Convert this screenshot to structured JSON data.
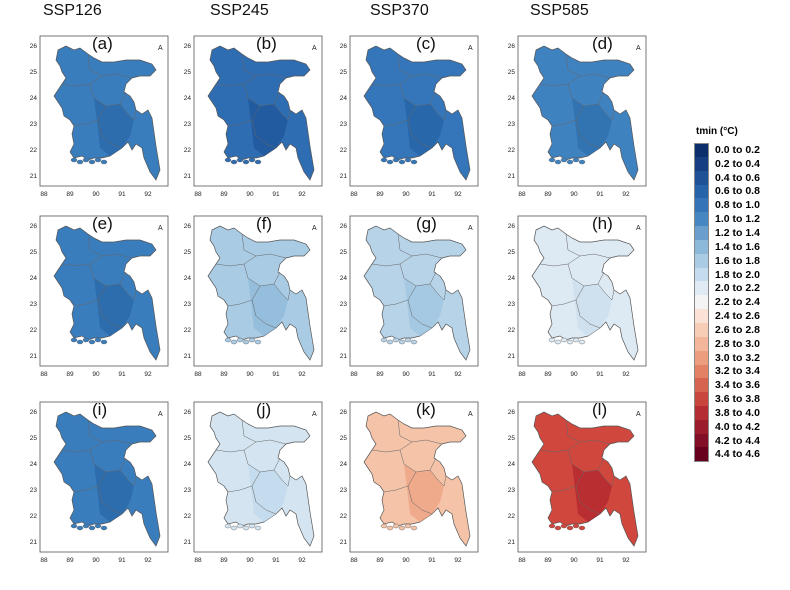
{
  "columns": [
    "SSP126",
    "SSP245",
    "SSP370",
    "SSP585"
  ],
  "axes": {
    "x_ticks": [
      "88",
      "89",
      "90",
      "91",
      "92"
    ],
    "y_ticks": [
      "26",
      "25",
      "24",
      "23",
      "22",
      "21"
    ]
  },
  "north_symbol": "A",
  "panels": [
    {
      "label": "(a)",
      "scenario": "SSP126",
      "row": 1,
      "fill": "#3a7dbd",
      "dark": "#2a68aa"
    },
    {
      "label": "(b)",
      "scenario": "SSP245",
      "row": 1,
      "fill": "#2f6db3",
      "dark": "#1f5699"
    },
    {
      "label": "(c)",
      "scenario": "SSP370",
      "row": 1,
      "fill": "#3476b9",
      "dark": "#2463a6"
    },
    {
      "label": "(d)",
      "scenario": "SSP585",
      "row": 1,
      "fill": "#3f82c0",
      "dark": "#2f6fae"
    },
    {
      "label": "(e)",
      "scenario": "SSP126",
      "row": 2,
      "fill": "#3a7dbd",
      "dark": "#2a68aa"
    },
    {
      "label": "(f)",
      "scenario": "SSP245",
      "row": 2,
      "fill": "#a9cbe4",
      "dark": "#8fbadb"
    },
    {
      "label": "(g)",
      "scenario": "SSP370",
      "row": 2,
      "fill": "#b7d3e8",
      "dark": "#a0c5e1"
    },
    {
      "label": "(h)",
      "scenario": "SSP585",
      "row": 2,
      "fill": "#dde9f3",
      "dark": "#c9dcec"
    },
    {
      "label": "(i)",
      "scenario": "SSP126",
      "row": 3,
      "fill": "#3a7dbd",
      "dark": "#2a68aa"
    },
    {
      "label": "(j)",
      "scenario": "SSP245",
      "row": 3,
      "fill": "#d4e5f1",
      "dark": "#bfd8eb"
    },
    {
      "label": "(k)",
      "scenario": "SSP370",
      "row": 3,
      "fill": "#f4c3a8",
      "dark": "#eea283"
    },
    {
      "label": "(l)",
      "scenario": "SSP585",
      "row": 3,
      "fill": "#d0473d",
      "dark": "#b2262d"
    }
  ],
  "legend": {
    "title": "tmin (°C)",
    "items": [
      {
        "label": "0.0 to 0.2",
        "color": "#0b2f6b"
      },
      {
        "label": "0.2 to 0.4",
        "color": "#153f80"
      },
      {
        "label": "0.4 to 0.6",
        "color": "#1e5296"
      },
      {
        "label": "0.6 to 0.8",
        "color": "#2763a8"
      },
      {
        "label": "0.8 to 1.0",
        "color": "#3574b6"
      },
      {
        "label": "1.0 to 1.2",
        "color": "#4787c1"
      },
      {
        "label": "1.2 to 1.4",
        "color": "#6a9fcd"
      },
      {
        "label": "1.4 to 1.6",
        "color": "#8cb8da"
      },
      {
        "label": "1.6 to 1.8",
        "color": "#aacbe4"
      },
      {
        "label": "1.8 to 2.0",
        "color": "#c5dcee"
      },
      {
        "label": "2.0 to 2.2",
        "color": "#dfeaf4"
      },
      {
        "label": "2.2 to 2.4",
        "color": "#f4f4f4"
      },
      {
        "label": "2.4 to 2.6",
        "color": "#fae3d6"
      },
      {
        "label": "2.6 to 2.8",
        "color": "#f7cdb6"
      },
      {
        "label": "2.8 to 3.0",
        "color": "#f3b69a"
      },
      {
        "label": "3.0 to 3.2",
        "color": "#ec9d7e"
      },
      {
        "label": "3.2 to 3.4",
        "color": "#e38165"
      },
      {
        "label": "3.4 to 3.6",
        "color": "#d6634f"
      },
      {
        "label": "3.6 to 3.8",
        "color": "#c8463d"
      },
      {
        "label": "3.8 to 4.0",
        "color": "#b52d32"
      },
      {
        "label": "4.0 to 4.2",
        "color": "#9c1c2b"
      },
      {
        "label": "4.2 to 4.4",
        "color": "#820f25"
      },
      {
        "label": "4.4 to 4.6",
        "color": "#67001f"
      }
    ]
  }
}
